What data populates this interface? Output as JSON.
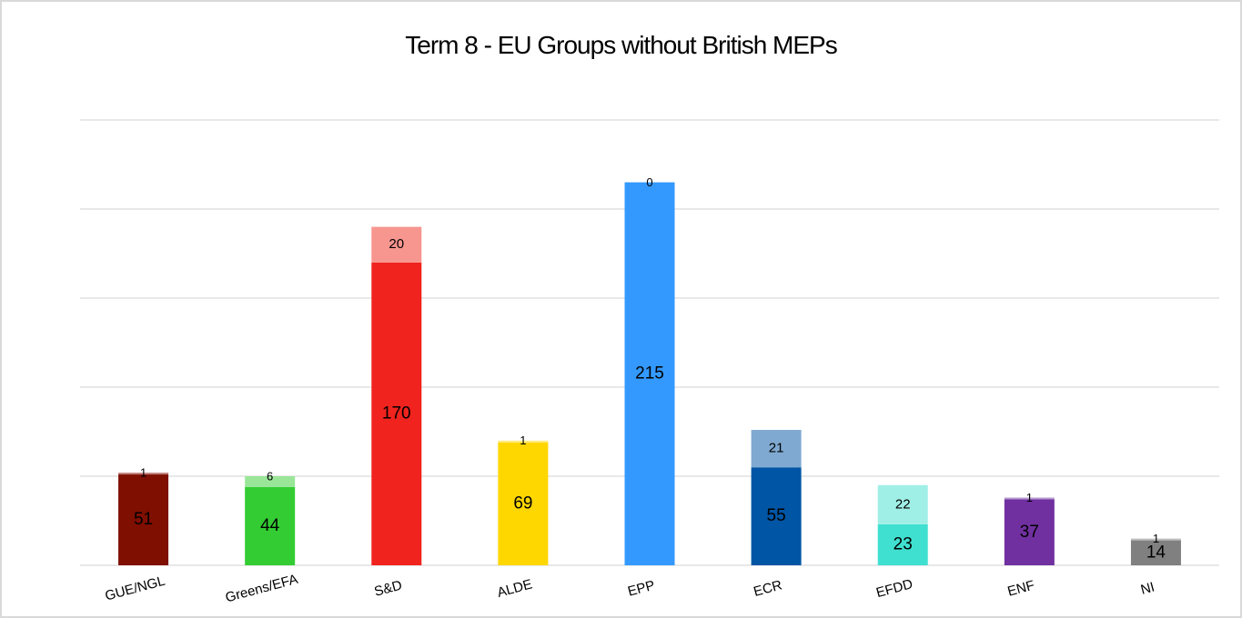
{
  "chart_data": {
    "type": "bar",
    "stacked": true,
    "title": "Term 8 - EU Groups without British MEPs",
    "xlabel": "",
    "ylabel": "",
    "ylim": [
      0,
      250
    ],
    "grid": true,
    "legend": "none",
    "categories": [
      "GUE/NGL",
      "Greens/EFA",
      "S&D",
      "ALDE",
      "EPP",
      "ECR",
      "EFDD",
      "ENF",
      "NI"
    ],
    "series": [
      {
        "values": [
          51,
          44,
          170,
          69,
          215,
          55,
          23,
          37,
          14
        ],
        "colors": [
          "#7f0f00",
          "#33cc33",
          "#f0231e",
          "#ffd700",
          "#3399ff",
          "#0055a4",
          "#40e0d0",
          "#7030a0",
          "#808080"
        ]
      },
      {
        "values": [
          1,
          6,
          20,
          1,
          0,
          21,
          22,
          1,
          1
        ],
        "colors": [
          "#c0807a",
          "#99e699",
          "#f7958f",
          "#ffeb80",
          "#99ccff",
          "#7fa9d1",
          "#a0efe7",
          "#b797cf",
          "#bfbfbf"
        ]
      }
    ]
  }
}
